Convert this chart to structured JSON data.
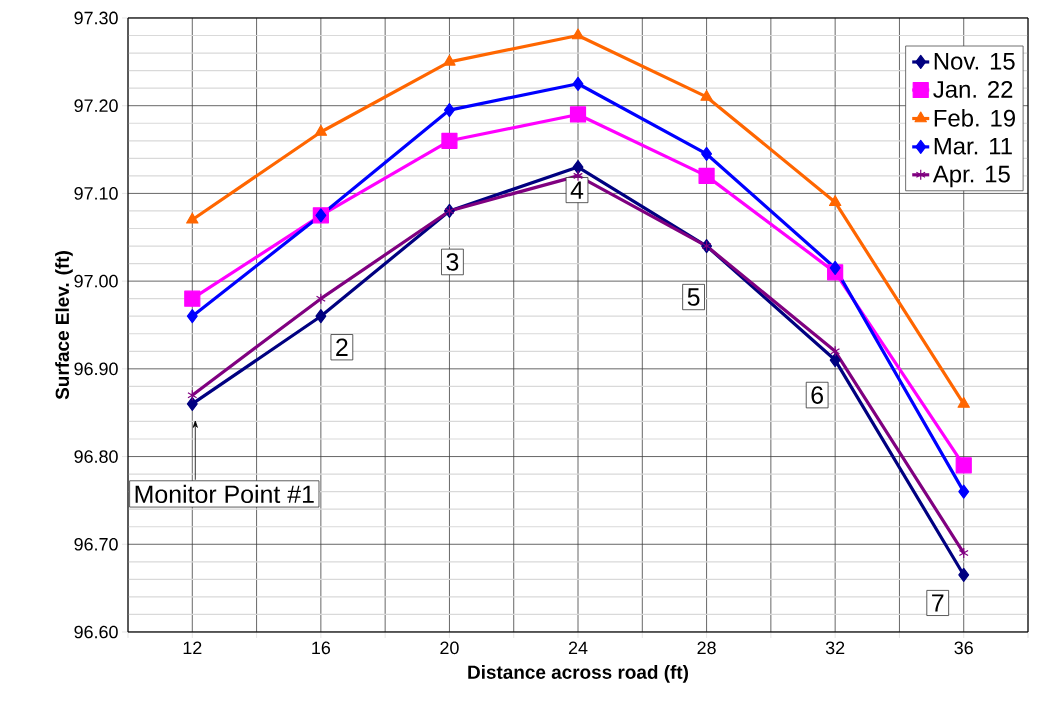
{
  "chart_data": {
    "type": "line",
    "xlabel": "Distance across road (ft)",
    "ylabel": "Surface Elev. (ft)",
    "x": [
      12,
      16,
      20,
      24,
      28,
      32,
      36
    ],
    "series": [
      {
        "name": "Nov. 15",
        "color": "#000080",
        "marker": "diamond",
        "values": [
          96.86,
          96.96,
          97.08,
          97.13,
          97.04,
          96.91,
          96.665
        ]
      },
      {
        "name": "Jan. 22",
        "color": "#ff00ff",
        "marker": "square",
        "values": [
          96.98,
          97.075,
          97.16,
          97.19,
          97.12,
          97.01,
          96.79
        ]
      },
      {
        "name": "Feb. 19",
        "color": "#ff6600",
        "marker": "triangle",
        "values": [
          97.07,
          97.17,
          97.25,
          97.28,
          97.21,
          97.09,
          96.86
        ]
      },
      {
        "name": "Mar. 11",
        "color": "#0000ff",
        "marker": "diamond",
        "values": [
          96.96,
          97.075,
          97.195,
          97.225,
          97.145,
          97.015,
          96.76
        ]
      },
      {
        "name": "Apr. 15",
        "color": "#800080",
        "marker": "cross",
        "values": [
          96.87,
          96.98,
          97.08,
          97.12,
          97.04,
          96.92,
          96.69
        ]
      }
    ],
    "xlim": [
      10,
      38
    ],
    "xticks": [
      {
        "value": 10,
        "label": null
      },
      12,
      {
        "value": 14,
        "label": null
      },
      16,
      {
        "value": 18,
        "label": null
      },
      20,
      {
        "value": 22,
        "label": null
      },
      24,
      {
        "value": 26,
        "label": null
      },
      28,
      {
        "value": 30,
        "label": null
      },
      32,
      {
        "value": 34,
        "label": null
      },
      36,
      {
        "value": 38,
        "label": null
      }
    ],
    "ylim": [
      96.6,
      97.3
    ],
    "yticks": [
      {
        "value": 96.6,
        "label": "96.60"
      },
      {
        "value": 96.7,
        "label": "96.70"
      },
      {
        "value": 96.8,
        "label": "96.80"
      },
      {
        "value": 96.9,
        "label": "96.90"
      },
      {
        "value": 97.0,
        "label": "97.00"
      },
      {
        "value": 97.1,
        "label": "97.10"
      },
      {
        "value": 97.2,
        "label": "97.20"
      },
      {
        "value": 97.3,
        "label": "97.30"
      }
    ],
    "grid": true,
    "legend": "top right",
    "line_style": "solid",
    "annotations": [
      "Monitor Point #1",
      {
        "text": "2",
        "x": 16,
        "y": 96.96
      },
      {
        "text": "3",
        "x": 20,
        "y": 97.08
      },
      {
        "text": "4",
        "x": 24,
        "y": 97.13
      },
      {
        "text": "5",
        "x": 28,
        "y": 97.04
      },
      {
        "text": "6",
        "x": 32,
        "y": 96.91
      },
      {
        "text": "7",
        "x": 36,
        "y": 96.665
      }
    ]
  }
}
